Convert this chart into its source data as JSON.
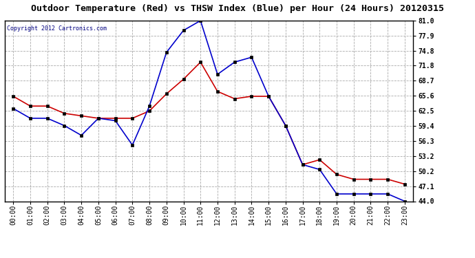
{
  "title": "Outdoor Temperature (Red) vs THSW Index (Blue) per Hour (24 Hours) 20120315",
  "copyright": "Copyright 2012 Cartronics.com",
  "hours": [
    0,
    1,
    2,
    3,
    4,
    5,
    6,
    7,
    8,
    9,
    10,
    11,
    12,
    13,
    14,
    15,
    16,
    17,
    18,
    19,
    20,
    21,
    22,
    23
  ],
  "red_temp": [
    65.5,
    63.5,
    63.5,
    62.0,
    61.5,
    61.0,
    61.0,
    61.0,
    62.5,
    66.0,
    69.0,
    72.5,
    66.5,
    65.0,
    65.5,
    65.5,
    59.5,
    51.5,
    52.5,
    49.5,
    48.5,
    48.5,
    48.5,
    47.5
  ],
  "blue_thsw": [
    63.0,
    61.0,
    61.0,
    59.5,
    57.5,
    61.0,
    60.5,
    55.5,
    63.5,
    74.5,
    79.0,
    81.0,
    70.0,
    72.5,
    73.5,
    65.5,
    59.5,
    51.5,
    50.5,
    45.5,
    45.5,
    45.5,
    45.5,
    44.0
  ],
  "ylim": [
    44.0,
    81.0
  ],
  "yticks": [
    44.0,
    47.1,
    50.2,
    53.2,
    56.3,
    59.4,
    62.5,
    65.6,
    68.7,
    71.8,
    74.8,
    77.9,
    81.0
  ],
  "bg_color": "#ffffff",
  "plot_bg_color": "#ffffff",
  "grid_color": "#aaaaaa",
  "red_color": "#cc0000",
  "blue_color": "#0000cc",
  "copyright_color": "#000080",
  "title_fontsize": 9.5,
  "tick_fontsize": 7,
  "copyright_fontsize": 6
}
